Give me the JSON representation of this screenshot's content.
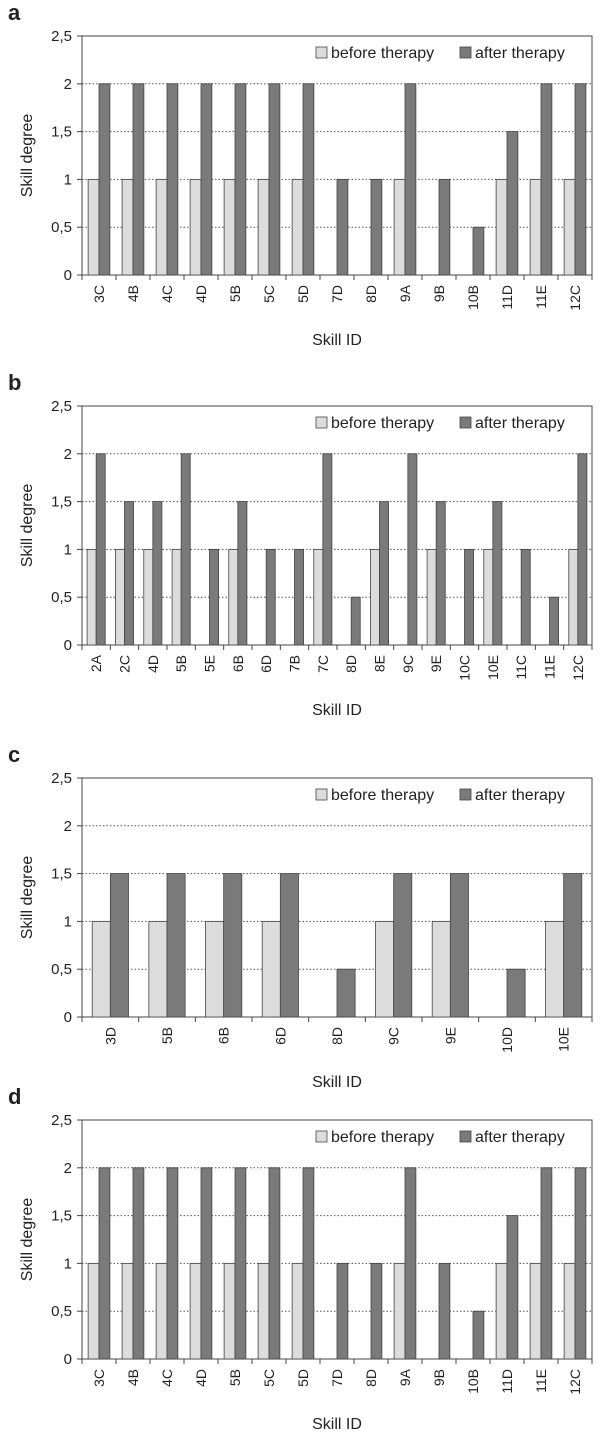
{
  "colors": {
    "before": "#dcdcdc",
    "after": "#7a7a7a",
    "edge": "#444444",
    "grid": "#555555"
  },
  "chart_data": [
    {
      "type": "bar",
      "panel": "a",
      "ylabel": "Skill degree",
      "xlabel": "Skill ID",
      "ylim": [
        0,
        2.5
      ],
      "yticks": [
        "0",
        "0,5",
        "1",
        "1,5",
        "2",
        "2,5"
      ],
      "grid": "dotted horizontal",
      "legend": "top-right",
      "categories": [
        "3C",
        "4B",
        "4C",
        "4D",
        "5B",
        "5C",
        "5D",
        "7D",
        "8D",
        "9A",
        "9B",
        "10B",
        "11D",
        "11E",
        "12C"
      ],
      "series": [
        {
          "name": "before therapy",
          "values": [
            1,
            1,
            1,
            1,
            1,
            1,
            1,
            0,
            0,
            1,
            0,
            0,
            1,
            1,
            1
          ]
        },
        {
          "name": "after therapy",
          "values": [
            2,
            2,
            2,
            2,
            2,
            2,
            2,
            1,
            1,
            2,
            1,
            0.5,
            1.5,
            2,
            2
          ]
        }
      ]
    },
    {
      "type": "bar",
      "panel": "b",
      "ylabel": "Skill degree",
      "xlabel": "Skill ID",
      "ylim": [
        0,
        2.5
      ],
      "yticks": [
        "0",
        "0,5",
        "1",
        "1,5",
        "2",
        "2,5"
      ],
      "grid": "dotted horizontal",
      "legend": "top-right",
      "categories": [
        "2A",
        "2C",
        "4D",
        "5B",
        "5E",
        "6B",
        "6D",
        "7B",
        "7C",
        "8D",
        "8E",
        "9C",
        "9E",
        "10C",
        "10E",
        "11C",
        "11E",
        "12C"
      ],
      "series": [
        {
          "name": "before therapy",
          "values": [
            1,
            1,
            1,
            1,
            0,
            1,
            0,
            0,
            1,
            0,
            1,
            0,
            1,
            0,
            1,
            0,
            0,
            1
          ]
        },
        {
          "name": "after therapy",
          "values": [
            2,
            1.5,
            1.5,
            2,
            1,
            1.5,
            1,
            1,
            2,
            0.5,
            1.5,
            2,
            1.5,
            1,
            1.5,
            1,
            0.5,
            2
          ]
        }
      ]
    },
    {
      "type": "bar",
      "panel": "c",
      "ylabel": "Skill degree",
      "xlabel": "Skill ID",
      "ylim": [
        0,
        2.5
      ],
      "yticks": [
        "0",
        "0,5",
        "1",
        "1,5",
        "2",
        "2,5"
      ],
      "grid": "dotted horizontal",
      "legend": "top-right",
      "categories": [
        "3D",
        "5B",
        "6B",
        "6D",
        "8D",
        "9C",
        "9E",
        "10D",
        "10E"
      ],
      "series": [
        {
          "name": "before therapy",
          "values": [
            1,
            1,
            1,
            1,
            0,
            1,
            1,
            0,
            1
          ]
        },
        {
          "name": "after therapy",
          "values": [
            1.5,
            1.5,
            1.5,
            1.5,
            0.5,
            1.5,
            1.5,
            0.5,
            1.5
          ]
        }
      ]
    },
    {
      "type": "bar",
      "panel": "d",
      "ylabel": "Skill degree",
      "xlabel": "Skill ID",
      "ylim": [
        0,
        2.5
      ],
      "yticks": [
        "0",
        "0,5",
        "1",
        "1,5",
        "2",
        "2,5"
      ],
      "grid": "dotted horizontal",
      "legend": "top-right",
      "categories": [
        "3C",
        "4B",
        "4C",
        "4D",
        "5B",
        "5C",
        "5D",
        "7D",
        "8D",
        "9A",
        "9B",
        "10B",
        "11D",
        "11E",
        "12C"
      ],
      "series": [
        {
          "name": "before therapy",
          "values": [
            1,
            1,
            1,
            1,
            1,
            1,
            1,
            0,
            0,
            1,
            0,
            0,
            1,
            1,
            1
          ]
        },
        {
          "name": "after therapy",
          "values": [
            2,
            2,
            2,
            2,
            2,
            2,
            2,
            1,
            1,
            2,
            1,
            0.5,
            1.5,
            2,
            2
          ]
        }
      ]
    }
  ]
}
